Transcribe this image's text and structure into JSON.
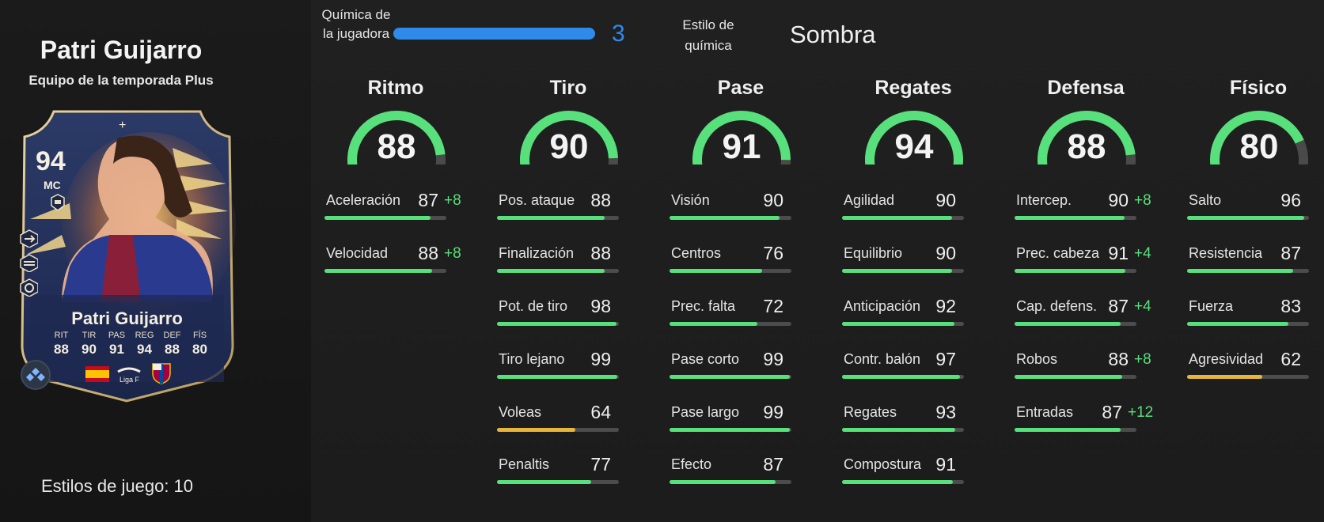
{
  "player": {
    "name": "Patri Guijarro",
    "version": "Equipo de la temporada Plus",
    "playstyles_label": "Estilos de juego: 10"
  },
  "card": {
    "rating": "94",
    "position": "MC",
    "name": "Patri Guijarro",
    "stats": [
      {
        "label": "RIT",
        "value": "88"
      },
      {
        "label": "TIR",
        "value": "90"
      },
      {
        "label": "PAS",
        "value": "91"
      },
      {
        "label": "REG",
        "value": "94"
      },
      {
        "label": "DEF",
        "value": "88"
      },
      {
        "label": "FÍS",
        "value": "80"
      }
    ],
    "league_text": "Liga F"
  },
  "chemistry": {
    "label": "Química de la jugadora",
    "value": "3",
    "level": 1.0,
    "style_label": "Estilo de química",
    "style_value": "Sombra",
    "bar_color": "#2f8bea"
  },
  "colors": {
    "green": "#57e07b",
    "yellow": "#e8b53c",
    "track": "#4c4c4c"
  },
  "categories": [
    {
      "title": "Ritmo",
      "value": 88,
      "stats": [
        {
          "name": "Aceleración",
          "value": 87,
          "boost": "+8"
        },
        {
          "name": "Velocidad",
          "value": 88,
          "boost": "+8"
        }
      ]
    },
    {
      "title": "Tiro",
      "value": 90,
      "stats": [
        {
          "name": "Pos. ataque",
          "value": 88,
          "boost": ""
        },
        {
          "name": "Finalización",
          "value": 88,
          "boost": ""
        },
        {
          "name": "Pot. de tiro",
          "value": 98,
          "boost": ""
        },
        {
          "name": "Tiro lejano",
          "value": 99,
          "boost": ""
        },
        {
          "name": "Voleas",
          "value": 64,
          "boost": ""
        },
        {
          "name": "Penaltis",
          "value": 77,
          "boost": ""
        }
      ]
    },
    {
      "title": "Pase",
      "value": 91,
      "stats": [
        {
          "name": "Visión",
          "value": 90,
          "boost": ""
        },
        {
          "name": "Centros",
          "value": 76,
          "boost": ""
        },
        {
          "name": "Prec. falta",
          "value": 72,
          "boost": ""
        },
        {
          "name": "Pase corto",
          "value": 99,
          "boost": ""
        },
        {
          "name": "Pase largo",
          "value": 99,
          "boost": ""
        },
        {
          "name": "Efecto",
          "value": 87,
          "boost": ""
        }
      ]
    },
    {
      "title": "Regates",
      "value": 94,
      "stats": [
        {
          "name": "Agilidad",
          "value": 90,
          "boost": ""
        },
        {
          "name": "Equilibrio",
          "value": 90,
          "boost": ""
        },
        {
          "name": "Anticipación",
          "value": 92,
          "boost": ""
        },
        {
          "name": "Contr. balón",
          "value": 97,
          "boost": ""
        },
        {
          "name": "Regates",
          "value": 93,
          "boost": ""
        },
        {
          "name": "Compostura",
          "value": 91,
          "boost": ""
        }
      ]
    },
    {
      "title": "Defensa",
      "value": 88,
      "stats": [
        {
          "name": "Intercep.",
          "value": 90,
          "boost": "+8"
        },
        {
          "name": "Prec. cabeza",
          "value": 91,
          "boost": "+4"
        },
        {
          "name": "Cap. defens.",
          "value": 87,
          "boost": "+4"
        },
        {
          "name": "Robos",
          "value": 88,
          "boost": "+8"
        },
        {
          "name": "Entradas",
          "value": 87,
          "boost": "+12"
        }
      ]
    },
    {
      "title": "Físico",
      "value": 80,
      "stats": [
        {
          "name": "Salto",
          "value": 96,
          "boost": ""
        },
        {
          "name": "Resistencia",
          "value": 87,
          "boost": ""
        },
        {
          "name": "Fuerza",
          "value": 83,
          "boost": ""
        },
        {
          "name": "Agresividad",
          "value": 62,
          "boost": ""
        }
      ]
    }
  ]
}
